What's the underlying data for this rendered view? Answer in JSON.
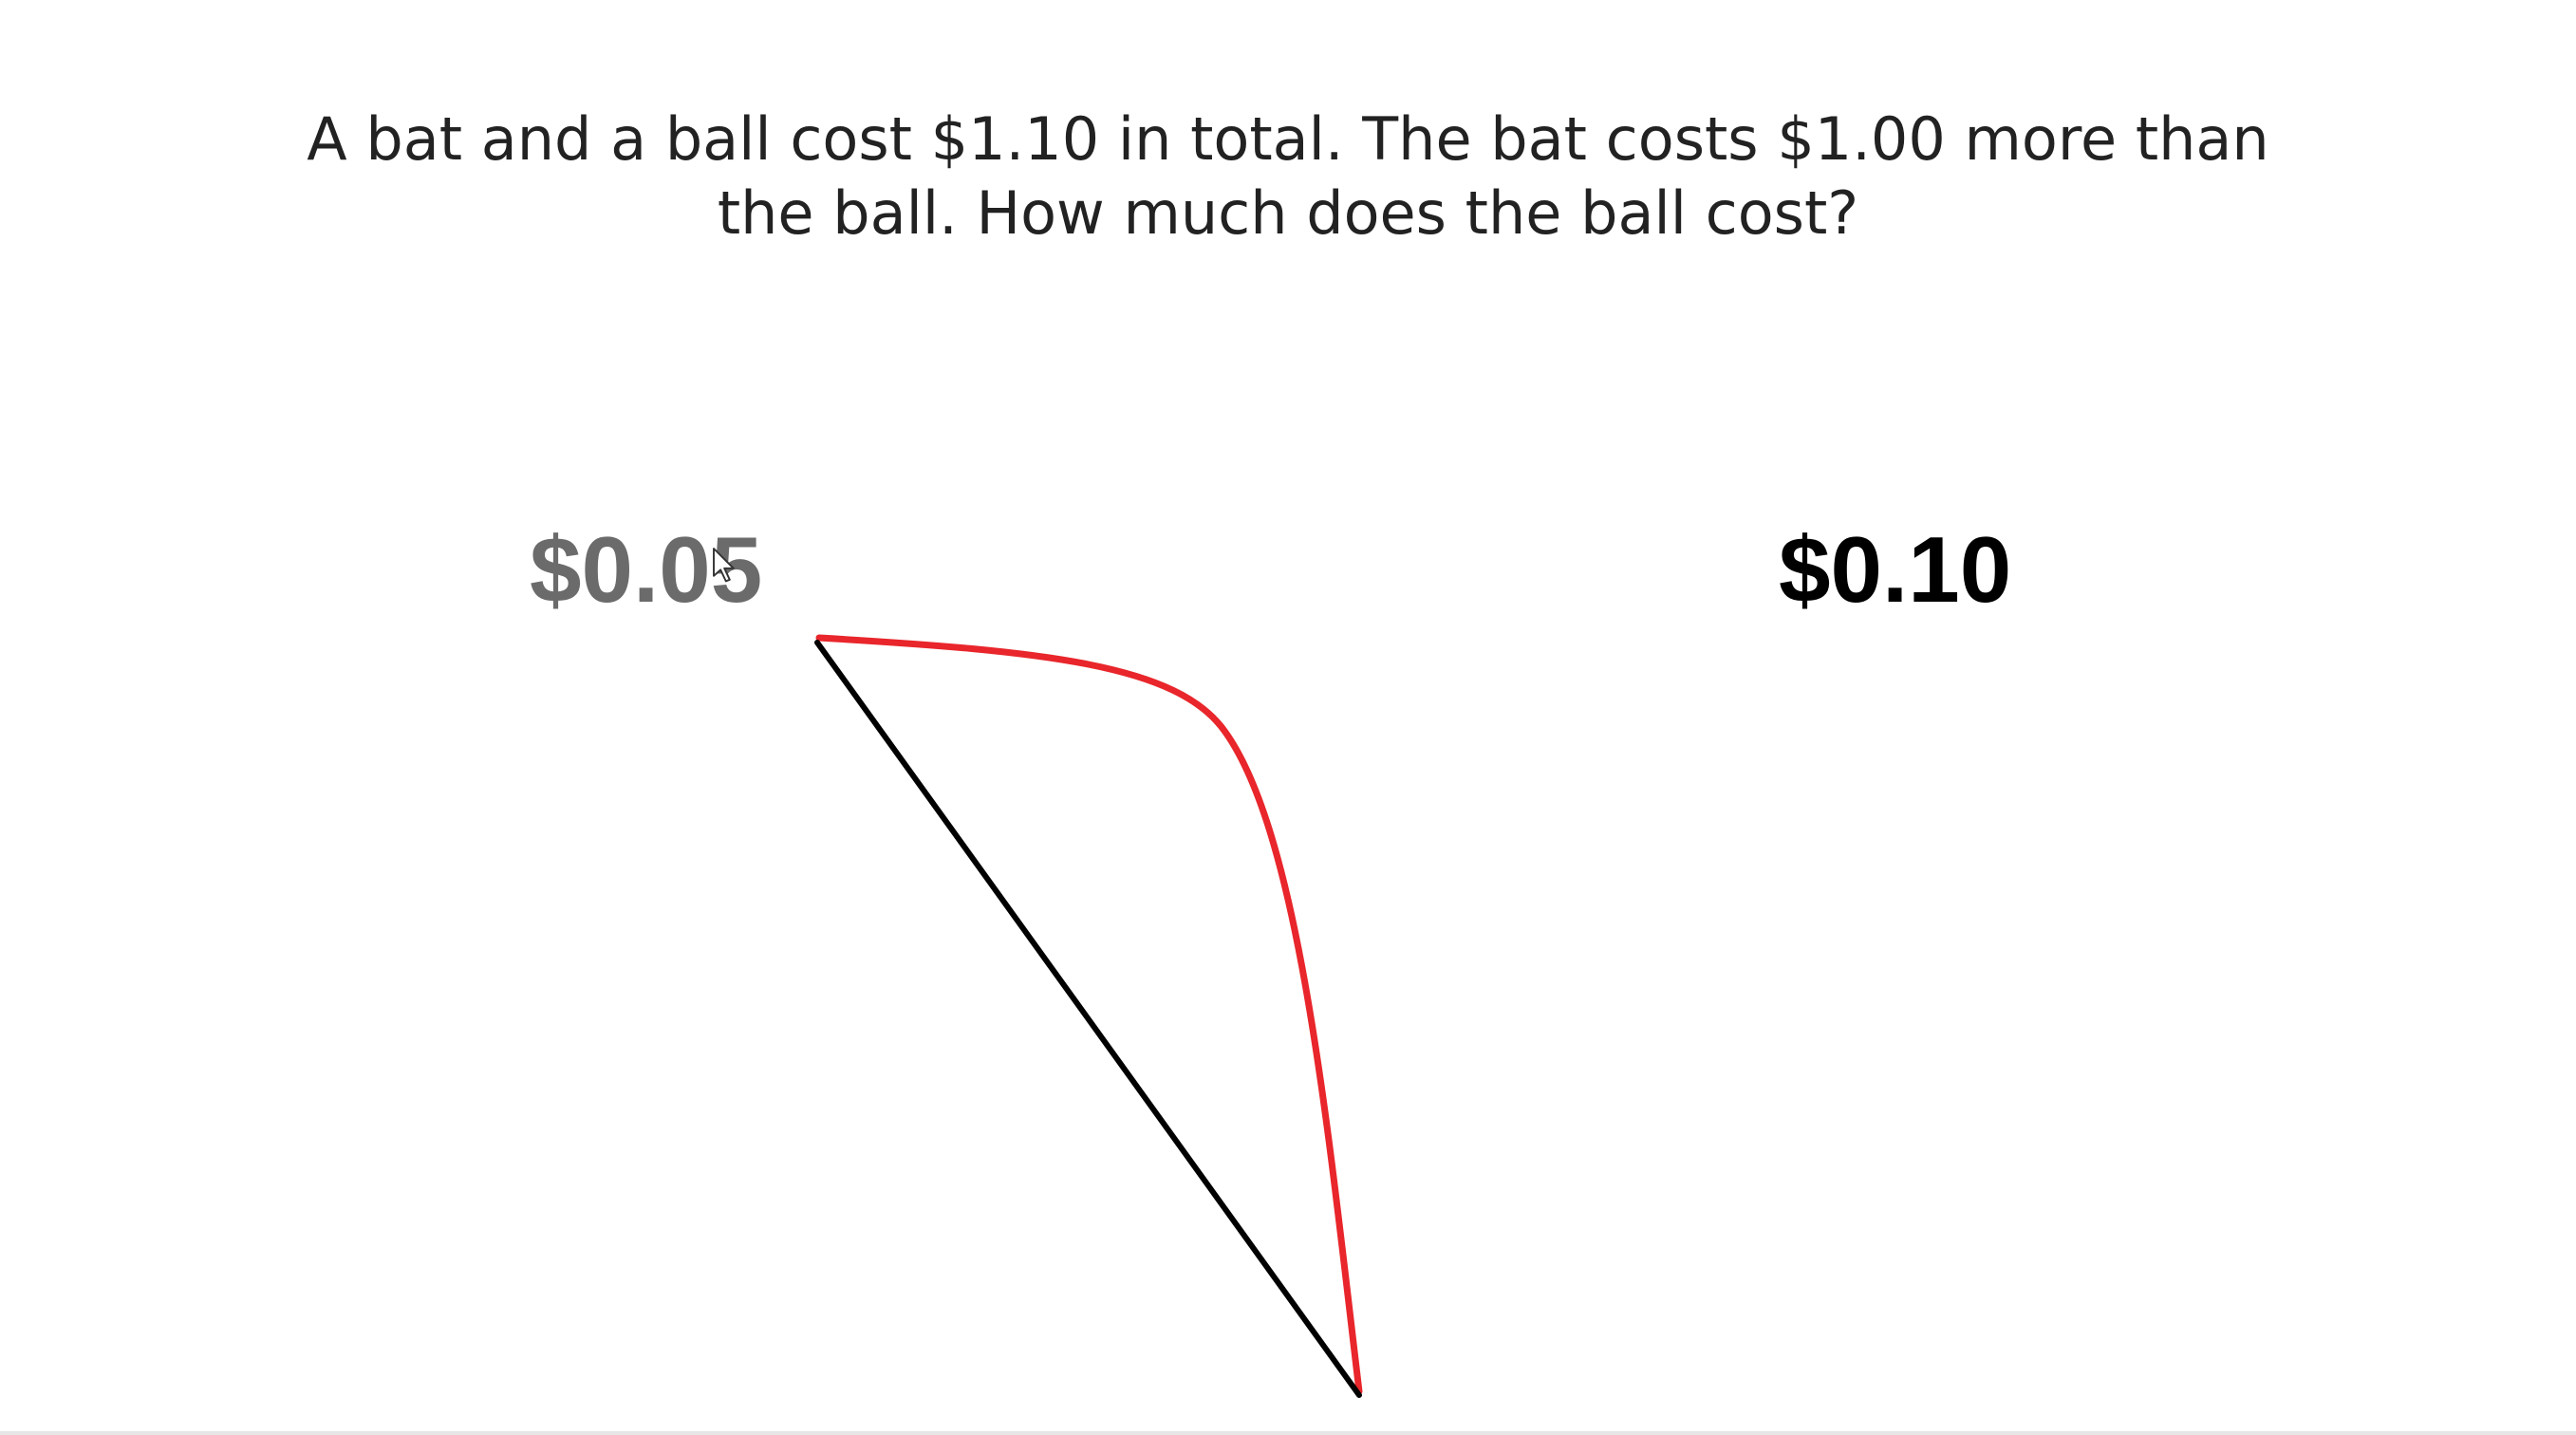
{
  "question": {
    "line1": "A bat and a ball cost $1.10 in total. The bat costs $1.00 more than",
    "line2": "the ball. How much does the ball cost?"
  },
  "options": [
    {
      "label": "$0.05",
      "color": "#6b6b6b",
      "state": "hovered"
    },
    {
      "label": "$0.10",
      "color": "#000000",
      "state": "default"
    }
  ],
  "annotations": {
    "curve_color": "#e8262b",
    "line_color": "#000000"
  }
}
